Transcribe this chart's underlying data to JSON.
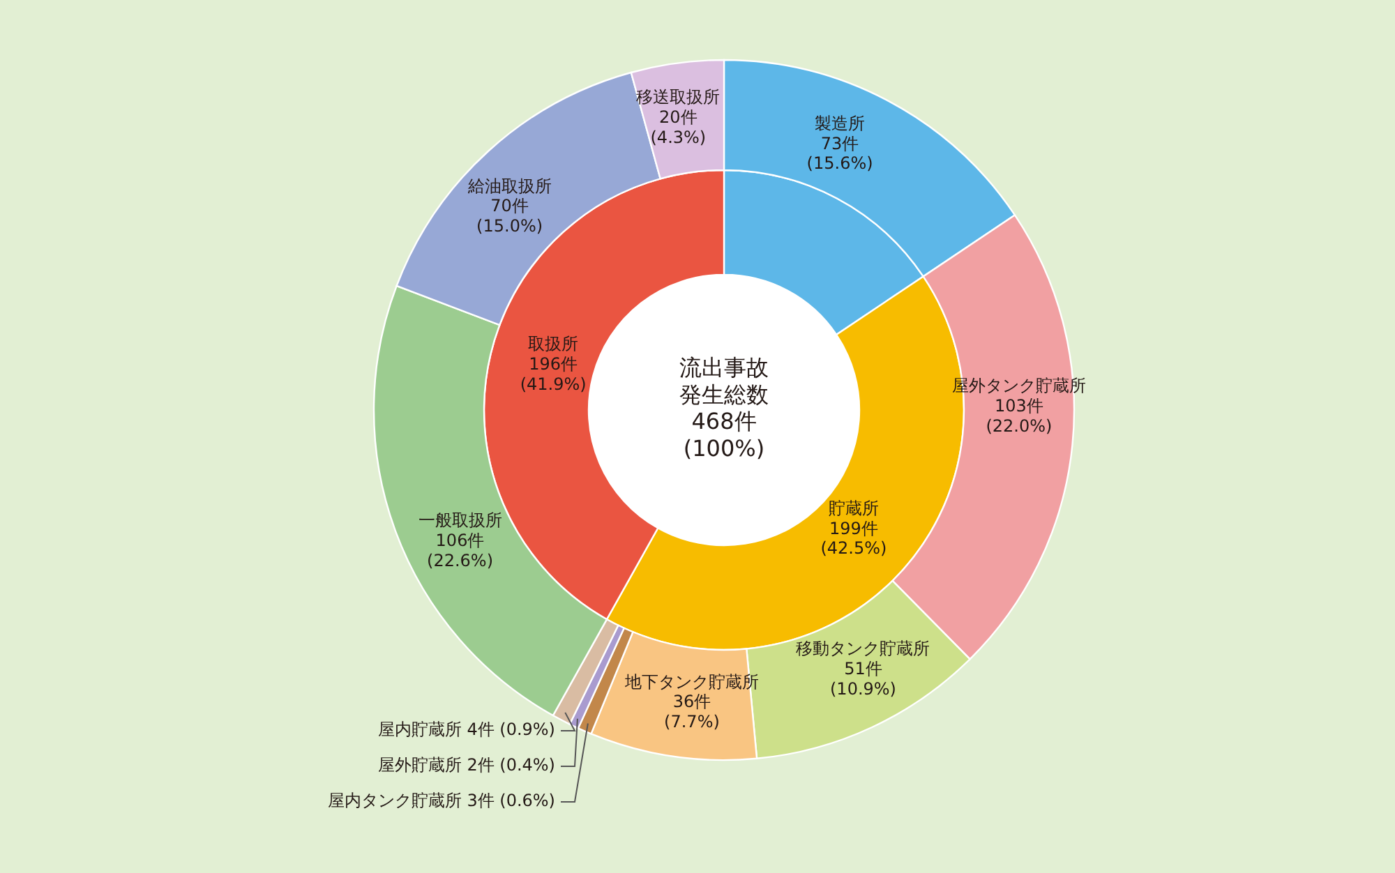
{
  "chart_data": [
    {
      "type": "donut",
      "title": "流出事故発生総数",
      "subtitle": "468件 (100%)",
      "data_labels": true,
      "legend": false,
      "categories": [
        null,
        "貯蔵所",
        "取扱所"
      ],
      "values": [
        73,
        199,
        196
      ],
      "colors": [
        "#5db7e8",
        "#f7bc00",
        "#ea5541"
      ],
      "value_labels": [
        null,
        "199件 (42.5%)",
        "196件 (41.9%)"
      ]
    },
    {
      "type": "donut",
      "data_labels": true,
      "legend": false,
      "categories": [
        "製造所",
        "屋外タンク貯蔵所",
        "移動タンク貯蔵所",
        "地下タンク貯蔵所",
        "屋内タンク貯蔵所",
        "屋外貯蔵所",
        "屋内貯蔵所",
        "一般取扱所",
        "給油取扱所",
        "移送取扱所"
      ],
      "values": [
        73,
        103,
        51,
        36,
        3,
        2,
        4,
        106,
        70,
        20
      ],
      "colors": [
        "#5db7e8",
        "#f1a0a2",
        "#cde08a",
        "#f9c582",
        "#c2874a",
        "#a99bcf",
        "#d9bca3",
        "#9ccc90",
        "#97a8d6",
        "#dbbfe0"
      ],
      "value_labels": [
        "73件 (15.6%)",
        "103件 (22.0%)",
        "51件 (10.9%)",
        "36件 (7.7%)",
        "3件 (0.6%)",
        "2件 (0.4%)",
        "4件 (0.9%)",
        "106件 (22.6%)",
        "70件 (15.0%)",
        "20件 (4.3%)"
      ]
    }
  ]
}
